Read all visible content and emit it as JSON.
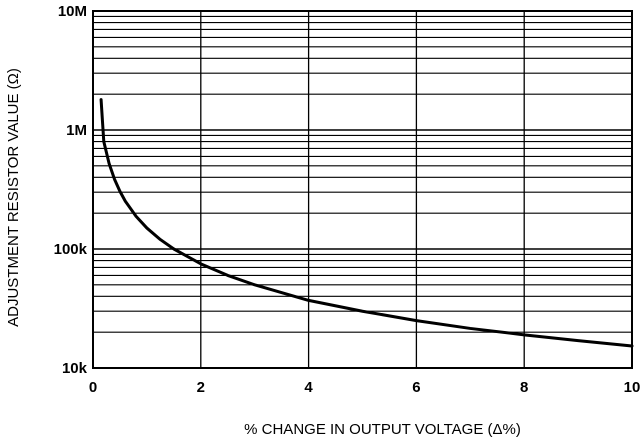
{
  "chart_data": {
    "type": "line",
    "title": "",
    "xlabel": "% CHANGE IN OUTPUT VOLTAGE (Δ%)",
    "ylabel": "ADJUSTMENT RESISTOR VALUE (Ω)",
    "xlim": [
      0,
      10
    ],
    "ylim": [
      10000,
      10000000
    ],
    "yscale": "log",
    "grid": true,
    "legend": "none",
    "x_ticks": [
      {
        "value": 0,
        "label": "0"
      },
      {
        "value": 2,
        "label": "2"
      },
      {
        "value": 4,
        "label": "4"
      },
      {
        "value": 6,
        "label": "6"
      },
      {
        "value": 8,
        "label": "8"
      },
      {
        "value": 10,
        "label": "10"
      }
    ],
    "y_ticks": [
      {
        "value": 10000,
        "label": "10k"
      },
      {
        "value": 100000,
        "label": "100k"
      },
      {
        "value": 1000000,
        "label": "1M"
      },
      {
        "value": 10000000,
        "label": "10M"
      }
    ],
    "series": [
      {
        "color": "#000000",
        "points": [
          [
            0.15,
            1800000
          ],
          [
            0.2,
            800000
          ],
          [
            0.3,
            520000
          ],
          [
            0.4,
            385000
          ],
          [
            0.5,
            305000
          ],
          [
            0.6,
            252000
          ],
          [
            0.8,
            188000
          ],
          [
            1.0,
            150000
          ],
          [
            1.25,
            120000
          ],
          [
            1.5,
            100000
          ],
          [
            2.0,
            75000
          ],
          [
            2.5,
            60000
          ],
          [
            3.0,
            50000
          ],
          [
            4.0,
            37000
          ],
          [
            5.0,
            30000
          ],
          [
            6.0,
            25000
          ],
          [
            7.0,
            21500
          ],
          [
            8.0,
            19000
          ],
          [
            9.0,
            17000
          ],
          [
            10.0,
            15300
          ]
        ]
      }
    ]
  }
}
